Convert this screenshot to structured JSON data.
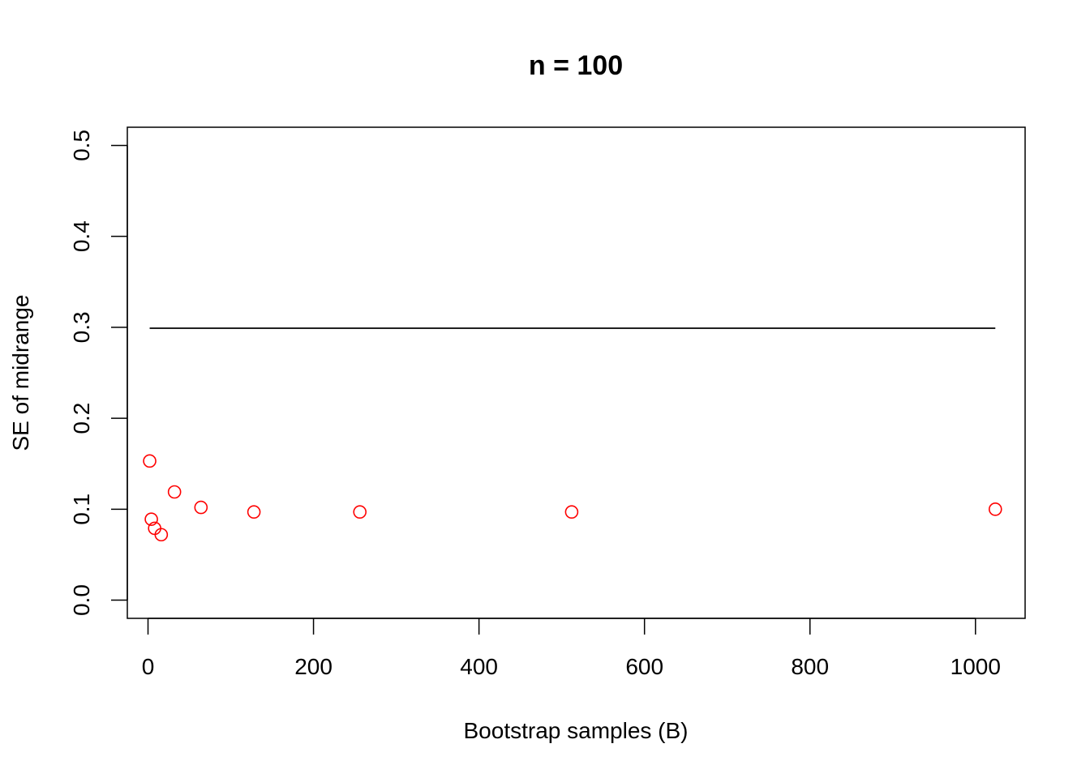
{
  "chart_data": {
    "type": "scatter",
    "title": "n = 100",
    "xlabel": "Bootstrap samples (B)",
    "ylabel": "SE of midrange",
    "xlim": [
      -25,
      1060
    ],
    "ylim": [
      -0.02,
      0.52
    ],
    "x_ticks": [
      0,
      200,
      400,
      600,
      800,
      1000
    ],
    "y_ticks": [
      0.0,
      0.1,
      0.2,
      0.3,
      0.4,
      0.5
    ],
    "x_tick_labels": [
      "0",
      "200",
      "400",
      "600",
      "800",
      "1000"
    ],
    "y_tick_labels": [
      "0.0",
      "0.1",
      "0.2",
      "0.3",
      "0.4",
      "0.5"
    ],
    "grid": false,
    "legend": "none",
    "series": [
      {
        "kind": "points",
        "color": "#ff0000",
        "marker": "open-circle",
        "x": [
          2,
          4,
          8,
          16,
          32,
          64,
          128,
          256,
          512,
          1024
        ],
        "y": [
          0.153,
          0.089,
          0.079,
          0.072,
          0.119,
          0.102,
          0.097,
          0.097,
          0.097,
          0.1
        ]
      },
      {
        "kind": "hline",
        "color": "#000000",
        "x": [
          2,
          1024
        ],
        "y": [
          0.299,
          0.299
        ]
      }
    ]
  }
}
